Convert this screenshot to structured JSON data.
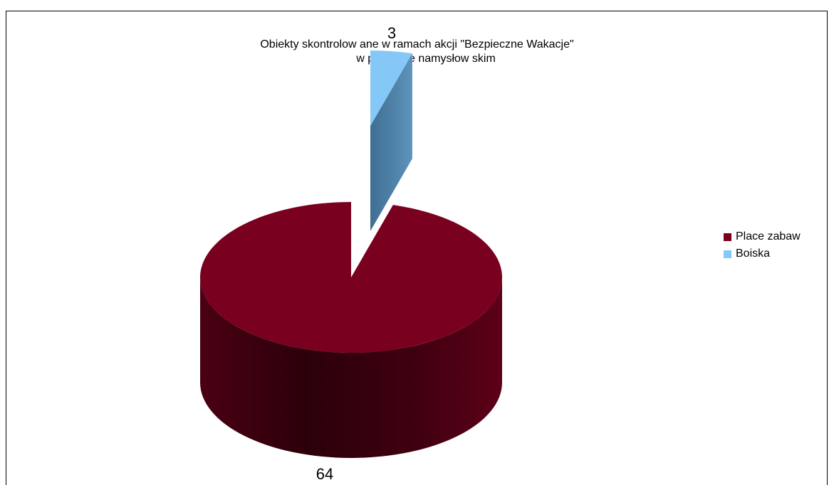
{
  "chart_data": {
    "type": "pie",
    "title_line1": "Obiekty skontrolow ane w  ramach akcji \"Bezpieczne Wakacje\"",
    "title_line2": "w  pow iecie namysłow skim",
    "series": [
      {
        "name": "Place zabaw",
        "value": 64,
        "label": "64",
        "color": "#7a0020"
      },
      {
        "name": "Boiska",
        "value": 3,
        "label": "3",
        "color": "#85c8f8"
      }
    ],
    "legend_position": "right",
    "style": "3d-exploded"
  }
}
